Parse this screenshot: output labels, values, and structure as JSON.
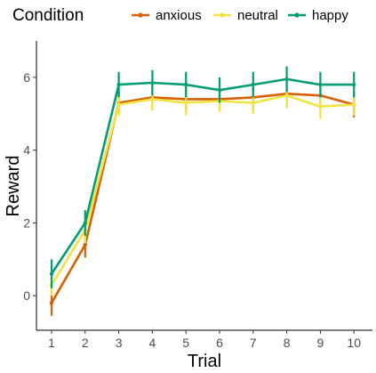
{
  "chart_data": {
    "type": "line",
    "xlabel": "Trial",
    "ylabel": "Reward",
    "x": [
      1,
      2,
      3,
      4,
      5,
      6,
      7,
      8,
      9,
      10
    ],
    "xlim": [
      0.55,
      10.55
    ],
    "ylim": [
      -0.95,
      7.0
    ],
    "yticks": [
      0,
      2,
      4,
      6
    ],
    "grid": false,
    "legend": {
      "title": "Condition",
      "position": "top"
    },
    "series": [
      {
        "name": "anxious",
        "color": "#d95f02",
        "values": [
          -0.2,
          1.4,
          5.3,
          5.45,
          5.4,
          5.4,
          5.45,
          5.55,
          5.5,
          5.25
        ],
        "err": [
          0.35,
          0.35,
          0.3,
          0.35,
          0.35,
          0.3,
          0.35,
          0.35,
          0.35,
          0.35
        ]
      },
      {
        "name": "neutral",
        "color": "#f0e442",
        "values": [
          0.3,
          1.8,
          5.25,
          5.4,
          5.3,
          5.35,
          5.3,
          5.5,
          5.2,
          5.25
        ],
        "err": [
          0.3,
          0.35,
          0.3,
          0.3,
          0.35,
          0.3,
          0.3,
          0.35,
          0.35,
          0.3
        ]
      },
      {
        "name": "happy",
        "color": "#009e73",
        "values": [
          0.6,
          2.0,
          5.8,
          5.85,
          5.8,
          5.65,
          5.8,
          5.95,
          5.8,
          5.8
        ],
        "err": [
          0.4,
          0.35,
          0.35,
          0.35,
          0.35,
          0.35,
          0.35,
          0.35,
          0.35,
          0.35
        ]
      }
    ]
  }
}
